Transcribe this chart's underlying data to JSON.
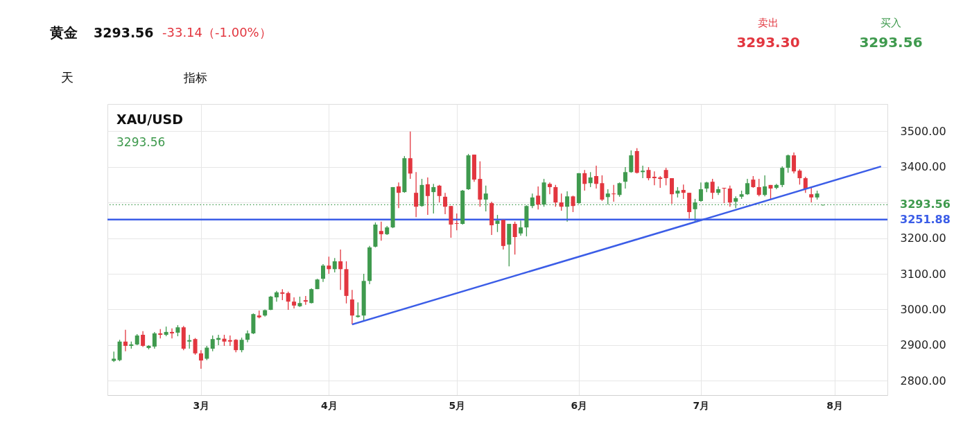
{
  "chart_data": {
    "type": "candlestick",
    "title": "黄金",
    "annotations": [
      "3293.56",
      "-33.14（-1.00%）",
      "卖出",
      "3293.30",
      "买入",
      "3293.56",
      "天",
      "指标",
      "XAU/USD",
      "3293.56"
    ],
    "categories": [
      null,
      null,
      null,
      null,
      null,
      null,
      null,
      null,
      null,
      null,
      null,
      null,
      null,
      null,
      null,
      "3月",
      null,
      null,
      null,
      null,
      null,
      null,
      null,
      null,
      null,
      null,
      null,
      null,
      null,
      null,
      null,
      null,
      null,
      null,
      null,
      null,
      null,
      "4月",
      null,
      null,
      null,
      null,
      null,
      null,
      null,
      null,
      null,
      null,
      null,
      null,
      null,
      null,
      null,
      null,
      null,
      null,
      null,
      null,
      null,
      "5月",
      null,
      null,
      null,
      null,
      null,
      null,
      null,
      null,
      null,
      null,
      null,
      null,
      null,
      null,
      null,
      null,
      null,
      null,
      null,
      null,
      "6月",
      null,
      null,
      null,
      null,
      null,
      null,
      null,
      null,
      null,
      null,
      null,
      null,
      null,
      null,
      null,
      null,
      null,
      null,
      null,
      null,
      "7月",
      null,
      null,
      null,
      null,
      null,
      null,
      null,
      null,
      null,
      null,
      null,
      null,
      null,
      null,
      null,
      null,
      null,
      null,
      null,
      null,
      null,
      null,
      "8月",
      null,
      null,
      null,
      null,
      null,
      null,
      null,
      null
    ],
    "ohlc": [
      [
        2856,
        2882,
        2853,
        2862
      ],
      [
        2858,
        2915,
        2855,
        2910
      ],
      [
        2910,
        2943,
        2883,
        2898
      ],
      [
        2898,
        2910,
        2890,
        2902
      ],
      [
        2902,
        2931,
        2900,
        2927
      ],
      [
        2929,
        2939,
        2895,
        2898
      ],
      [
        2892,
        2900,
        2888,
        2898
      ],
      [
        2896,
        2937,
        2890,
        2933
      ],
      [
        2933,
        2945,
        2919,
        2929
      ],
      [
        2929,
        2952,
        2925,
        2937
      ],
      [
        2937,
        2947,
        2919,
        2933
      ],
      [
        2935,
        2956,
        2925,
        2950
      ],
      [
        2950,
        2954,
        2886,
        2890
      ],
      [
        2910,
        2929,
        2890,
        2914
      ],
      [
        2917,
        2920,
        2873,
        2877
      ],
      [
        2877,
        2886,
        2834,
        2857
      ],
      [
        2862,
        2898,
        2858,
        2893
      ],
      [
        2890,
        2927,
        2883,
        2917
      ],
      [
        2915,
        2929,
        2900,
        2920
      ],
      [
        2918,
        2929,
        2898,
        2910
      ],
      [
        2914,
        2927,
        2898,
        2910
      ],
      [
        2915,
        2917,
        2880,
        2886
      ],
      [
        2886,
        2921,
        2880,
        2915
      ],
      [
        2915,
        2941,
        2908,
        2933
      ],
      [
        2933,
        2989,
        2931,
        2987
      ],
      [
        2983,
        2997,
        2975,
        2978
      ],
      [
        2983,
        3000,
        2980,
        2998
      ],
      [
        2999,
        3038,
        2998,
        3036
      ],
      [
        3034,
        3052,
        3022,
        3048
      ],
      [
        3048,
        3057,
        3026,
        3044
      ],
      [
        3046,
        3050,
        2999,
        3022
      ],
      [
        3022,
        3034,
        3003,
        3011
      ],
      [
        3009,
        3036,
        3007,
        3018
      ],
      [
        3026,
        3038,
        3013,
        3022
      ],
      [
        3018,
        3059,
        3017,
        3057
      ],
      [
        3057,
        3086,
        3057,
        3084
      ],
      [
        3086,
        3127,
        3077,
        3123
      ],
      [
        3123,
        3148,
        3100,
        3113
      ],
      [
        3113,
        3144,
        3104,
        3135
      ],
      [
        3135,
        3168,
        3055,
        3113
      ],
      [
        3113,
        3135,
        3017,
        3038
      ],
      [
        3028,
        3055,
        2958,
        2983
      ],
      [
        2979,
        3020,
        2977,
        2983
      ],
      [
        2983,
        3100,
        2970,
        3080
      ],
      [
        3080,
        3178,
        3071,
        3174
      ],
      [
        3176,
        3244,
        3174,
        3238
      ],
      [
        3220,
        3246,
        3193,
        3211
      ],
      [
        3211,
        3234,
        3209,
        3230
      ],
      [
        3230,
        3343,
        3228,
        3343
      ],
      [
        3345,
        3356,
        3284,
        3327
      ],
      [
        3329,
        3430,
        3327,
        3424
      ],
      [
        3424,
        3499,
        3366,
        3381
      ],
      [
        3327,
        3385,
        3259,
        3288
      ],
      [
        3290,
        3366,
        3288,
        3349
      ],
      [
        3351,
        3370,
        3265,
        3318
      ],
      [
        3329,
        3352,
        3269,
        3343
      ],
      [
        3347,
        3349,
        3300,
        3318
      ],
      [
        3316,
        3327,
        3267,
        3288
      ],
      [
        3290,
        3290,
        3201,
        3238
      ],
      [
        3242,
        3269,
        3222,
        3240
      ],
      [
        3240,
        3335,
        3238,
        3333
      ],
      [
        3337,
        3436,
        3335,
        3432
      ],
      [
        3434,
        3434,
        3358,
        3364
      ],
      [
        3366,
        3415,
        3288,
        3308
      ],
      [
        3308,
        3347,
        3275,
        3325
      ],
      [
        3298,
        3302,
        3209,
        3236
      ],
      [
        3240,
        3265,
        3217,
        3249
      ],
      [
        3251,
        3251,
        3168,
        3178
      ],
      [
        3182,
        3240,
        3121,
        3240
      ],
      [
        3240,
        3246,
        3154,
        3203
      ],
      [
        3213,
        3249,
        3207,
        3230
      ],
      [
        3230,
        3292,
        3205,
        3290
      ],
      [
        3290,
        3325,
        3284,
        3314
      ],
      [
        3319,
        3345,
        3280,
        3294
      ],
      [
        3294,
        3366,
        3288,
        3356
      ],
      [
        3352,
        3356,
        3323,
        3343
      ],
      [
        3343,
        3349,
        3288,
        3300
      ],
      [
        3300,
        3325,
        3277,
        3288
      ],
      [
        3288,
        3331,
        3246,
        3317
      ],
      [
        3317,
        3319,
        3273,
        3290
      ],
      [
        3298,
        3382,
        3296,
        3382
      ],
      [
        3382,
        3391,
        3333,
        3352
      ],
      [
        3354,
        3385,
        3343,
        3370
      ],
      [
        3374,
        3403,
        3339,
        3352
      ],
      [
        3354,
        3376,
        3304,
        3308
      ],
      [
        3315,
        3337,
        3294,
        3325
      ],
      [
        3325,
        3349,
        3302,
        3323
      ],
      [
        3321,
        3356,
        3316,
        3354
      ],
      [
        3358,
        3399,
        3339,
        3385
      ],
      [
        3385,
        3446,
        3383,
        3432
      ],
      [
        3444,
        3452,
        3381,
        3383
      ],
      [
        3385,
        3403,
        3368,
        3389
      ],
      [
        3391,
        3399,
        3362,
        3368
      ],
      [
        3372,
        3387,
        3348,
        3368
      ],
      [
        3370,
        3374,
        3341,
        3366
      ],
      [
        3391,
        3397,
        3348,
        3368
      ],
      [
        3368,
        3368,
        3296,
        3323
      ],
      [
        3325,
        3343,
        3314,
        3333
      ],
      [
        3335,
        3350,
        3310,
        3327
      ],
      [
        3327,
        3327,
        3255,
        3273
      ],
      [
        3281,
        3310,
        3247,
        3300
      ],
      [
        3304,
        3356,
        3302,
        3337
      ],
      [
        3339,
        3358,
        3329,
        3356
      ],
      [
        3358,
        3366,
        3310,
        3327
      ],
      [
        3327,
        3345,
        3321,
        3337
      ],
      [
        3341,
        3341,
        3298,
        3339
      ],
      [
        3339,
        3347,
        3288,
        3300
      ],
      [
        3302,
        3317,
        3284,
        3312
      ],
      [
        3316,
        3333,
        3310,
        3323
      ],
      [
        3323,
        3366,
        3321,
        3354
      ],
      [
        3364,
        3374,
        3341,
        3343
      ],
      [
        3343,
        3366,
        3317,
        3321
      ],
      [
        3321,
        3376,
        3317,
        3345
      ],
      [
        3349,
        3349,
        3310,
        3339
      ],
      [
        3341,
        3352,
        3337,
        3349
      ],
      [
        3349,
        3401,
        3343,
        3397
      ],
      [
        3397,
        3434,
        3383,
        3432
      ],
      [
        3432,
        3440,
        3381,
        3387
      ],
      [
        3389,
        3393,
        3350,
        3368
      ],
      [
        3368,
        3372,
        3327,
        3337
      ],
      [
        3323,
        3343,
        3300,
        3314
      ],
      [
        3314,
        3333,
        3308,
        3325
      ],
      [
        3292,
        3294,
        3291,
        3293
      ],
      null,
      null,
      null,
      null,
      null,
      null,
      null,
      null,
      null,
      null
    ],
    "colors": [
      "#3f9a4e",
      "#3f9a4e",
      "#e2363f",
      "#3f9a4e",
      "#3f9a4e",
      "#e2363f",
      "#3f9a4e",
      "#3f9a4e",
      "#e2363f",
      "#3f9a4e",
      "#e2363f",
      "#3f9a4e",
      "#e2363f",
      "#3f9a4e",
      "#e2363f",
      "#e2363f",
      "#3f9a4e",
      "#3f9a4e",
      "#3f9a4e",
      "#e2363f",
      "#e2363f",
      "#e2363f",
      "#3f9a4e",
      "#3f9a4e",
      "#3f9a4e",
      "#e2363f",
      "#3f9a4e",
      "#3f9a4e",
      "#3f9a4e",
      "#e2363f",
      "#e2363f",
      "#e2363f",
      "#3f9a4e",
      "#e2363f",
      "#3f9a4e",
      "#3f9a4e",
      "#3f9a4e",
      "#e2363f",
      "#3f9a4e",
      "#e2363f",
      "#e2363f",
      "#e2363f",
      "#3f9a4e",
      "#3f9a4e",
      "#3f9a4e",
      "#3f9a4e",
      "#e2363f",
      "#3f9a4e",
      "#3f9a4e",
      "#e2363f",
      "#3f9a4e",
      "#e2363f",
      "#e2363f",
      "#3f9a4e",
      "#e2363f",
      "#3f9a4e",
      "#e2363f",
      "#e2363f",
      "#e2363f",
      "#e2363f",
      "#3f9a4e",
      "#3f9a4e",
      "#e2363f",
      "#e2363f",
      "#3f9a4e",
      "#e2363f",
      "#3f9a4e",
      "#e2363f",
      "#3f9a4e",
      "#e2363f",
      "#3f9a4e",
      "#3f9a4e",
      "#3f9a4e",
      "#e2363f",
      "#3f9a4e",
      "#e2363f",
      "#e2363f",
      "#e2363f",
      "#3f9a4e",
      "#e2363f",
      "#3f9a4e",
      "#e2363f",
      "#3f9a4e",
      "#e2363f",
      "#e2363f",
      "#3f9a4e",
      "#e2363f",
      "#3f9a4e",
      "#3f9a4e",
      "#3f9a4e",
      "#e2363f",
      "#3f9a4e",
      "#e2363f",
      "#e2363f",
      "#e2363f",
      "#e2363f",
      "#e2363f",
      "#3f9a4e",
      "#e2363f",
      "#e2363f",
      "#3f9a4e",
      "#3f9a4e",
      "#3f9a4e",
      "#e2363f",
      "#3f9a4e",
      "#e2363f",
      "#e2363f",
      "#3f9a4e",
      "#3f9a4e",
      "#3f9a4e",
      "#e2363f",
      "#e2363f",
      "#3f9a4e",
      "#e2363f",
      "#3f9a4e",
      "#3f9a4e",
      "#3f9a4e",
      "#e2363f",
      "#e2363f",
      "#e2363f",
      "#e2363f",
      "#3f9a4e",
      "#3f9a4e",
      null,
      null,
      null,
      null,
      null,
      null,
      null,
      null,
      null,
      null
    ],
    "series": [
      {
        "type": "line",
        "color": "#3b5de7",
        "values": [
          null,
          null,
          null,
          null,
          null,
          null,
          null,
          null,
          null,
          null,
          null,
          null,
          null,
          null,
          null,
          null,
          null,
          null,
          null,
          null,
          null,
          null,
          null,
          null,
          null,
          null,
          null,
          null,
          null,
          null,
          null,
          null,
          null,
          null,
          null,
          null,
          null,
          null,
          null,
          null,
          null,
          2958,
          null,
          null,
          null,
          null,
          null,
          null,
          null,
          null,
          null,
          null,
          null,
          null,
          null,
          null,
          null,
          null,
          null,
          null,
          null,
          null,
          null,
          null,
          null,
          null,
          null,
          null,
          null,
          null,
          null,
          null,
          null,
          null,
          null,
          null,
          null,
          null,
          null,
          null,
          null,
          null,
          null,
          null,
          null,
          null,
          null,
          null,
          null,
          null,
          null,
          null,
          null,
          null,
          null,
          null,
          null,
          null,
          null,
          null,
          null,
          null,
          null,
          null,
          null,
          null,
          null,
          null,
          null,
          null,
          null,
          null,
          null,
          null,
          null,
          null,
          null,
          null,
          null,
          null,
          null,
          null,
          null,
          null,
          null,
          null,
          null,
          null,
          null,
          null,
          null,
          null,
          3401
        ]
      }
    ],
    "ylim": [
      2760,
      3576
    ],
    "yticks": [
      {
        "value": 2800,
        "label": "2800.00"
      },
      {
        "value": 2900,
        "label": "2900.00"
      },
      {
        "value": 3000,
        "label": "3000.00"
      },
      {
        "value": 3100,
        "label": "3100.00"
      },
      {
        "value": 3200,
        "label": "3200.00"
      },
      {
        "value": 3300,
        "label": null
      },
      {
        "value": 3400,
        "label": "3400.00"
      },
      {
        "value": 3500,
        "label": "3500.00"
      }
    ],
    "ref_lines": [
      {
        "axis": "y",
        "value": 3293.56,
        "label": "3293.56",
        "color": "#3f9a4e",
        "line_style": "dotted"
      },
      {
        "axis": "y",
        "value": 3251.88,
        "label": "3251.88",
        "color": "#3b5de7",
        "line_style": "solid"
      }
    ],
    "grid": true
  }
}
